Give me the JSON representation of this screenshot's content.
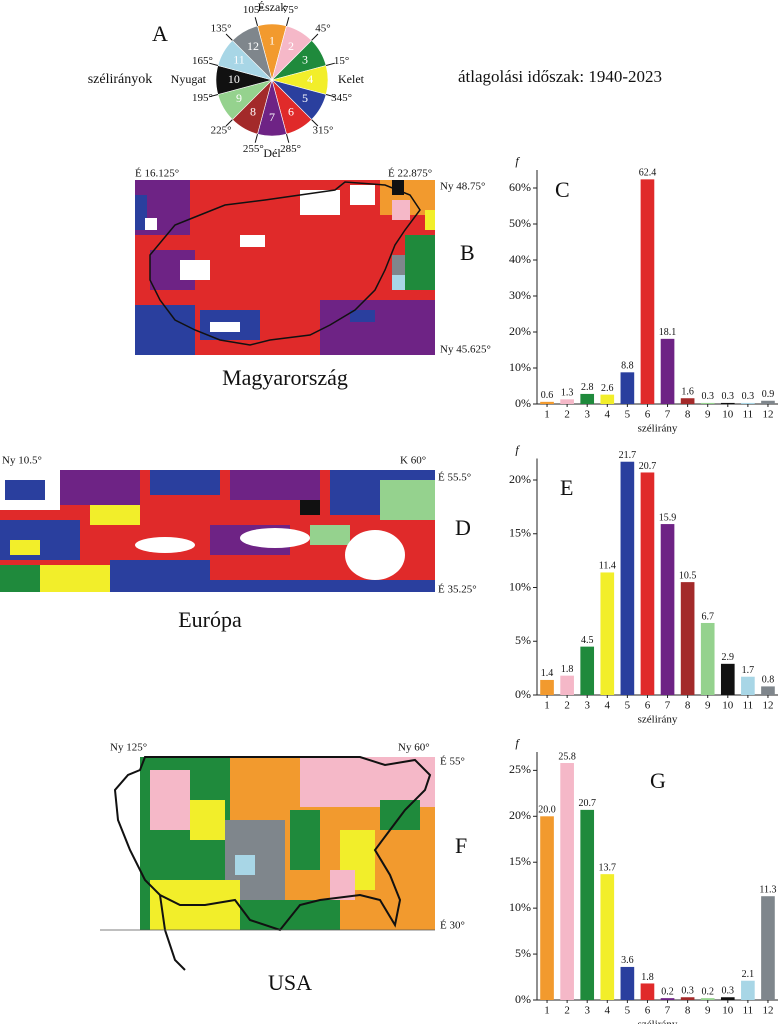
{
  "figure": {
    "panel": "A",
    "legend_title": "szélirányok",
    "period": "átlagolási időszak: 1940-2023",
    "compass": {
      "north": "Észak",
      "east": "Kelet",
      "south": "Dél",
      "west": "Nyugat",
      "sectors": [
        "1",
        "2",
        "3",
        "4",
        "5",
        "6",
        "7",
        "8",
        "9",
        "10",
        "11",
        "12"
      ],
      "angles": [
        "105°",
        "75°",
        "45°",
        "15°",
        "345°",
        "315°",
        "285°",
        "255°",
        "225°",
        "195°",
        "165°",
        "135°"
      ]
    },
    "maps": [
      {
        "panel": "B",
        "name": "Magyarország",
        "labels": [
          "É 16.125°",
          "É 22.875°",
          "Ny 48.75°",
          "Ny 45.625°"
        ]
      },
      {
        "panel": "D",
        "name": "Európa",
        "labels": [
          "Ny 10.5°",
          "K 60°",
          "É 55.5°",
          "É 35.25°"
        ]
      },
      {
        "panel": "F",
        "name": "USA",
        "labels": [
          "Ny 125°",
          "Ny 60°",
          "É 55°",
          "É 30°"
        ]
      }
    ]
  },
  "chart_data": [
    {
      "type": "bar",
      "panel": "C",
      "ylabel": "f",
      "xlabel": "szélirány",
      "categories": [
        "1",
        "2",
        "3",
        "4",
        "5",
        "6",
        "7",
        "8",
        "9",
        "10",
        "11",
        "12"
      ],
      "values": [
        0.6,
        1.3,
        2.8,
        2.6,
        8.8,
        62.4,
        18.1,
        1.6,
        0.3,
        0.3,
        0.3,
        0.9
      ],
      "colors": [
        "#f29a2e",
        "#f5b8c8",
        "#1f8a3c",
        "#f2ee2a",
        "#2a3f9e",
        "#e02a2a",
        "#6e2385",
        "#a32a2a",
        "#95d28e",
        "#111111",
        "#a8d6e6",
        "#7f868c"
      ],
      "ylim": [
        0,
        65
      ],
      "yticks": [
        {
          "value": 0,
          "label": "0%"
        },
        {
          "value": 10,
          "label": "10%"
        },
        {
          "value": 20,
          "label": "20%"
        },
        {
          "value": 30,
          "label": "30%"
        },
        {
          "value": 40,
          "label": "40%"
        },
        {
          "value": 50,
          "label": "50%"
        },
        {
          "value": 60,
          "label": "60%"
        }
      ]
    },
    {
      "type": "bar",
      "panel": "E",
      "ylabel": "f",
      "xlabel": "szélirány",
      "categories": [
        "1",
        "2",
        "3",
        "4",
        "5",
        "6",
        "7",
        "8",
        "9",
        "10",
        "11",
        "12"
      ],
      "values": [
        1.4,
        1.8,
        4.5,
        11.4,
        21.7,
        20.7,
        15.9,
        10.5,
        6.7,
        2.9,
        1.7,
        0.8
      ],
      "colors": [
        "#f29a2e",
        "#f5b8c8",
        "#1f8a3c",
        "#f2ee2a",
        "#2a3f9e",
        "#e02a2a",
        "#6e2385",
        "#a32a2a",
        "#95d28e",
        "#111111",
        "#a8d6e6",
        "#7f868c"
      ],
      "ylim": [
        0,
        22
      ],
      "yticks": [
        {
          "value": 0,
          "label": "0%"
        },
        {
          "value": 5,
          "label": "5%"
        },
        {
          "value": 10,
          "label": "10%"
        },
        {
          "value": 15,
          "label": "15%"
        },
        {
          "value": 20,
          "label": "20%"
        }
      ]
    },
    {
      "type": "bar",
      "panel": "G",
      "ylabel": "f",
      "xlabel": "szélirány",
      "categories": [
        "1",
        "2",
        "3",
        "4",
        "5",
        "6",
        "7",
        "8",
        "9",
        "10",
        "11",
        "12"
      ],
      "values": [
        20,
        25.8,
        20.7,
        13.7,
        3.6,
        1.8,
        0.2,
        0.3,
        0.2,
        0.3,
        2.1,
        11.3
      ],
      "value_labels": [
        "20.0",
        "25.8",
        "20.7",
        "13.7",
        "3.6",
        "1.8",
        "0.2",
        "0.3",
        "0.2",
        "0.3",
        "2.1",
        "11.3"
      ],
      "colors": [
        "#f29a2e",
        "#f5b8c8",
        "#1f8a3c",
        "#f2ee2a",
        "#2a3f9e",
        "#e02a2a",
        "#6e2385",
        "#a32a2a",
        "#95d28e",
        "#111111",
        "#a8d6e6",
        "#7f868c"
      ],
      "ylim": [
        0,
        27
      ],
      "yticks": [
        {
          "value": 0,
          "label": "0%"
        },
        {
          "value": 5,
          "label": "5%"
        },
        {
          "value": 10,
          "label": "10%"
        },
        {
          "value": 15,
          "label": "15%"
        },
        {
          "value": 20,
          "label": "20%"
        },
        {
          "value": 25,
          "label": "25%"
        }
      ]
    }
  ]
}
